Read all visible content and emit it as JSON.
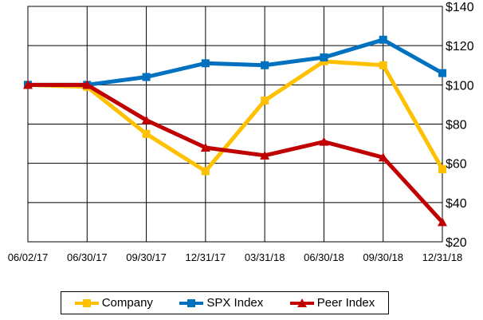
{
  "chart_data": {
    "type": "line",
    "categories": [
      "06/02/17",
      "06/30/17",
      "09/30/17",
      "12/31/17",
      "03/31/18",
      "06/30/18",
      "09/30/18",
      "12/31/18"
    ],
    "series": [
      {
        "name": "Company",
        "color": "#ffc000",
        "marker": "square",
        "values": [
          100,
          99,
          75,
          56,
          92,
          112,
          110,
          57
        ]
      },
      {
        "name": "SPX Index",
        "color": "#0070c0",
        "marker": "square",
        "values": [
          100,
          100,
          104,
          111,
          110,
          114,
          123,
          106
        ]
      },
      {
        "name": "Peer Index",
        "color": "#c00000",
        "marker": "triangle",
        "values": [
          100,
          100,
          82,
          68,
          64,
          71,
          63,
          30
        ]
      }
    ],
    "ylim": [
      20,
      140
    ],
    "yticks": [
      "$20",
      "$40",
      "$60",
      "$80",
      "$100",
      "$120",
      "$140"
    ],
    "grid": true,
    "legend": "bottom"
  }
}
